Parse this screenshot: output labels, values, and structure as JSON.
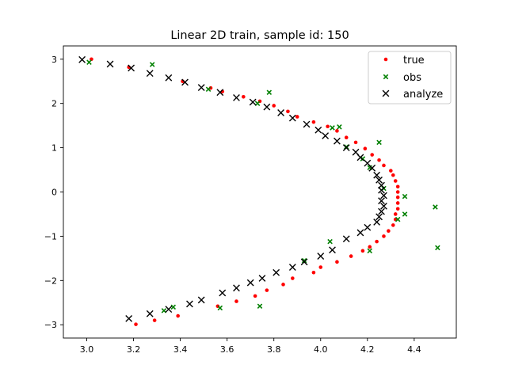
{
  "chart_data": {
    "type": "scatter",
    "title": "Linear 2D train, sample id: 150",
    "xlabel": "",
    "ylabel": "",
    "xlim": [
      2.9,
      4.58
    ],
    "ylim": [
      -3.3,
      3.3
    ],
    "x_ticks": [
      "3.0",
      "3.2",
      "3.4",
      "3.6",
      "3.8",
      "4.0",
      "4.2",
      "4.4"
    ],
    "x_tick_values": [
      3.0,
      3.2,
      3.4,
      3.6,
      3.8,
      4.0,
      4.2,
      4.4
    ],
    "y_ticks": [
      "−3",
      "−2",
      "−1",
      "0",
      "1",
      "2",
      "3"
    ],
    "y_tick_values": [
      -3,
      -2,
      -1,
      0,
      1,
      2,
      3
    ],
    "grid": false,
    "legend_position": "upper-right",
    "series": [
      {
        "name": "true",
        "marker": "dot",
        "color": "#ff0000",
        "points": [
          [
            3.02,
            3.0
          ],
          [
            3.18,
            2.82
          ],
          [
            3.41,
            2.5
          ],
          [
            3.53,
            2.35
          ],
          [
            3.58,
            2.27
          ],
          [
            3.67,
            2.15
          ],
          [
            3.74,
            2.05
          ],
          [
            3.8,
            1.95
          ],
          [
            3.86,
            1.82
          ],
          [
            3.9,
            1.7
          ],
          [
            3.97,
            1.58
          ],
          [
            4.03,
            1.48
          ],
          [
            4.07,
            1.38
          ],
          [
            4.11,
            1.23
          ],
          [
            4.15,
            1.12
          ],
          [
            4.19,
            0.98
          ],
          [
            4.22,
            0.84
          ],
          [
            4.25,
            0.72
          ],
          [
            4.27,
            0.6
          ],
          [
            4.3,
            0.48
          ],
          [
            4.31,
            0.38
          ],
          [
            4.32,
            0.25
          ],
          [
            4.33,
            0.12
          ],
          [
            4.33,
            0.0
          ],
          [
            4.33,
            -0.12
          ],
          [
            4.33,
            -0.25
          ],
          [
            4.33,
            -0.38
          ],
          [
            4.32,
            -0.5
          ],
          [
            4.32,
            -0.62
          ],
          [
            4.31,
            -0.75
          ],
          [
            4.29,
            -0.88
          ],
          [
            4.27,
            -1.0
          ],
          [
            4.24,
            -1.12
          ],
          [
            4.21,
            -1.24
          ],
          [
            4.18,
            -1.33
          ],
          [
            4.13,
            -1.45
          ],
          [
            4.07,
            -1.58
          ],
          [
            4.0,
            -1.7
          ],
          [
            3.97,
            -1.82
          ],
          [
            3.88,
            -1.95
          ],
          [
            3.84,
            -2.09
          ],
          [
            3.77,
            -2.22
          ],
          [
            3.72,
            -2.35
          ],
          [
            3.64,
            -2.47
          ],
          [
            3.56,
            -2.58
          ],
          [
            3.39,
            -2.8
          ],
          [
            3.29,
            -2.9
          ],
          [
            3.21,
            -2.99
          ]
        ]
      },
      {
        "name": "obs",
        "marker": "x-small",
        "color": "#008000",
        "points": [
          [
            3.01,
            2.93
          ],
          [
            3.28,
            2.88
          ],
          [
            3.52,
            2.32
          ],
          [
            3.73,
            2.0
          ],
          [
            3.78,
            2.25
          ],
          [
            4.05,
            1.45
          ],
          [
            4.08,
            1.47
          ],
          [
            4.25,
            1.12
          ],
          [
            4.11,
            1.02
          ],
          [
            4.18,
            0.75
          ],
          [
            4.21,
            0.55
          ],
          [
            4.27,
            0.08
          ],
          [
            4.36,
            -0.1
          ],
          [
            4.49,
            -0.34
          ],
          [
            4.36,
            -0.5
          ],
          [
            4.33,
            -0.62
          ],
          [
            4.5,
            -1.26
          ],
          [
            4.21,
            -1.33
          ],
          [
            4.04,
            -1.12
          ],
          [
            3.93,
            -1.55
          ],
          [
            3.37,
            -2.6
          ],
          [
            3.57,
            -2.62
          ],
          [
            3.74,
            -2.58
          ],
          [
            3.33,
            -2.68
          ]
        ]
      },
      {
        "name": "analyze",
        "marker": "x",
        "color": "#000000",
        "points": [
          [
            2.98,
            2.99
          ],
          [
            3.1,
            2.89
          ],
          [
            3.19,
            2.8
          ],
          [
            3.27,
            2.68
          ],
          [
            3.35,
            2.58
          ],
          [
            3.42,
            2.48
          ],
          [
            3.49,
            2.36
          ],
          [
            3.57,
            2.25
          ],
          [
            3.64,
            2.13
          ],
          [
            3.71,
            2.03
          ],
          [
            3.77,
            1.92
          ],
          [
            3.83,
            1.79
          ],
          [
            3.88,
            1.67
          ],
          [
            3.94,
            1.53
          ],
          [
            3.99,
            1.4
          ],
          [
            4.02,
            1.27
          ],
          [
            4.07,
            1.15
          ],
          [
            4.11,
            1.0
          ],
          [
            4.15,
            0.9
          ],
          [
            4.17,
            0.78
          ],
          [
            4.2,
            0.65
          ],
          [
            4.22,
            0.54
          ],
          [
            4.24,
            0.38
          ],
          [
            4.25,
            0.27
          ],
          [
            4.26,
            0.15
          ],
          [
            4.26,
            0.04
          ],
          [
            4.27,
            -0.08
          ],
          [
            4.26,
            -0.2
          ],
          [
            4.27,
            -0.32
          ],
          [
            4.26,
            -0.44
          ],
          [
            4.25,
            -0.56
          ],
          [
            4.24,
            -0.68
          ],
          [
            4.2,
            -0.8
          ],
          [
            4.17,
            -0.92
          ],
          [
            4.11,
            -1.06
          ],
          [
            4.05,
            -1.31
          ],
          [
            4.0,
            -1.45
          ],
          [
            3.93,
            -1.58
          ],
          [
            3.88,
            -1.7
          ],
          [
            3.81,
            -1.82
          ],
          [
            3.75,
            -1.95
          ],
          [
            3.7,
            -2.05
          ],
          [
            3.64,
            -2.17
          ],
          [
            3.58,
            -2.28
          ],
          [
            3.49,
            -2.44
          ],
          [
            3.44,
            -2.53
          ],
          [
            3.35,
            -2.65
          ],
          [
            3.27,
            -2.75
          ],
          [
            3.18,
            -2.86
          ]
        ]
      }
    ]
  }
}
